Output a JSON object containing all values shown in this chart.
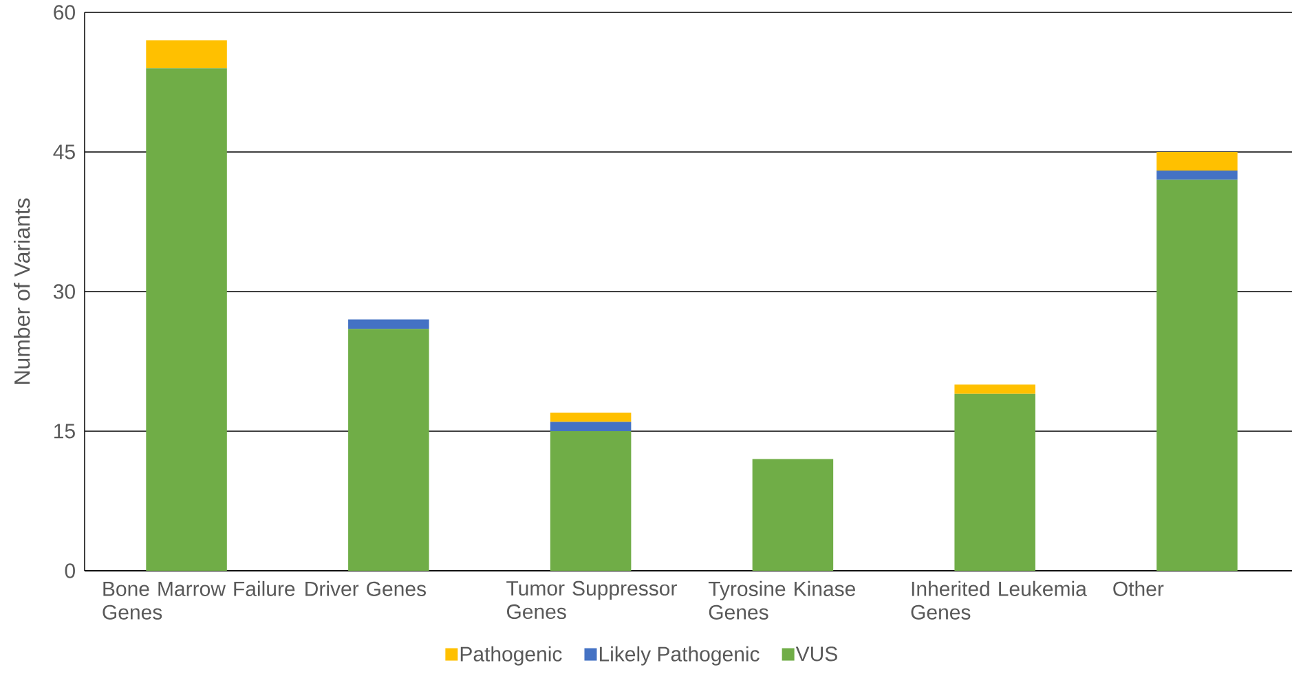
{
  "chart_data": {
    "type": "bar",
    "stacked": true,
    "ylabel": "Number of Variants",
    "categories": [
      "Bone Marrow Failure Genes",
      "Driver Genes",
      "Tumor Suppressor Genes",
      "Tyrosine Kinase Genes",
      "Inherited Leukemia Genes",
      "Other"
    ],
    "series": [
      {
        "name": "VUS",
        "color": "#70ad47",
        "values": [
          54,
          26,
          15,
          12,
          19,
          42
        ]
      },
      {
        "name": "Likely Pathogenic",
        "color": "#4472c4",
        "values": [
          0,
          1,
          1,
          0,
          0,
          1
        ]
      },
      {
        "name": "Pathogenic",
        "color": "#ffc000",
        "values": [
          3,
          0,
          1,
          0,
          1,
          2
        ]
      }
    ],
    "ylim": [
      0,
      60
    ],
    "yticks": [
      0,
      15,
      30,
      45,
      60
    ],
    "grid": "y",
    "legend": "bottom"
  }
}
